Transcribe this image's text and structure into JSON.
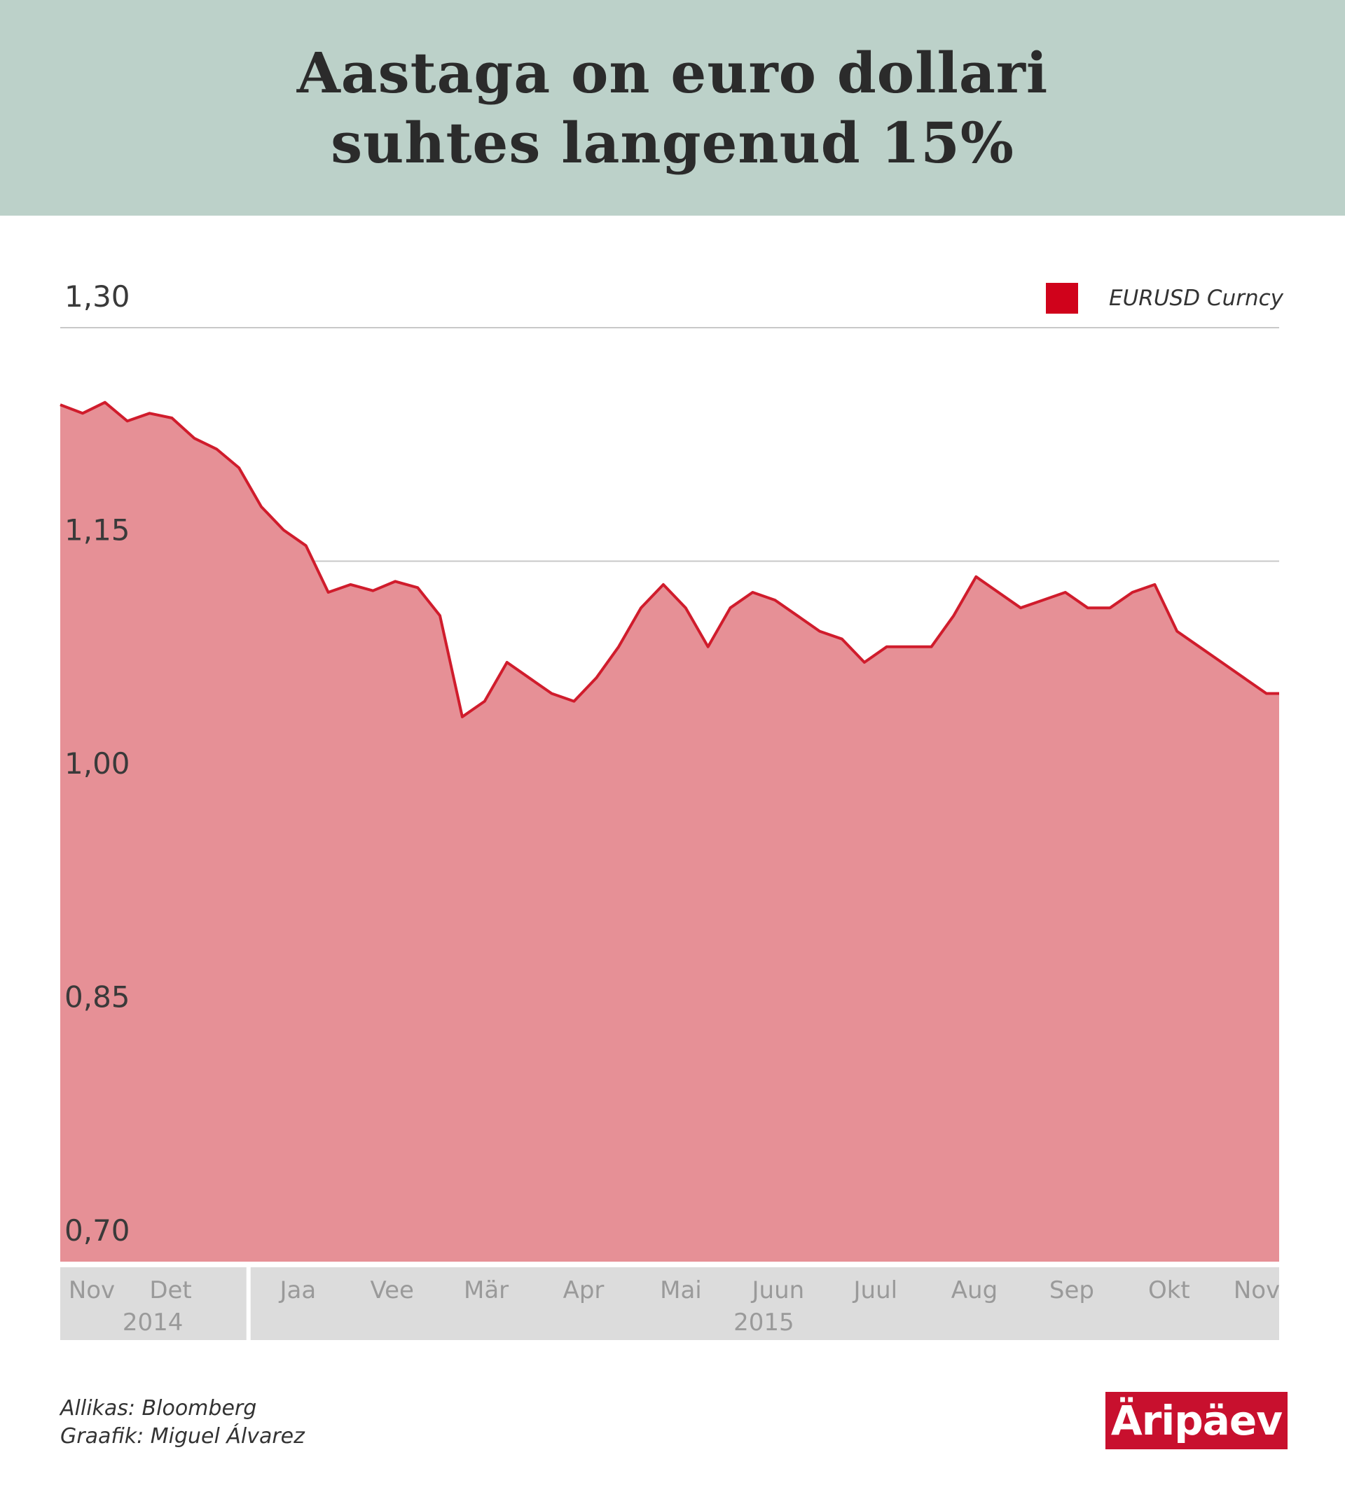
{
  "header": {
    "title_line1": "Aastaga on euro dollari",
    "title_line2": "suhtes langenud 15%"
  },
  "footer": {
    "source": "Allikas: Bloomberg",
    "graphic": "Graafik: Miguel Álvarez",
    "logo": "Äripäev"
  },
  "colors": {
    "header_bg": "#bcd1c9",
    "line": "#d01c2c",
    "area": "#e69096",
    "legend": "#d0021b",
    "axis_band": "#dcdcdc"
  },
  "chart_data": {
    "type": "area",
    "title": "Aastaga on euro dollari suhtes langenud 15%",
    "xlabel": "",
    "ylabel": "",
    "ylim": [
      0.7,
      1.3
    ],
    "yticks": [
      "1,30",
      "1,15",
      "1,00",
      "0,85",
      "0,70"
    ],
    "grid": true,
    "legend_position": "top-right",
    "series": [
      {
        "name": "EURUSD Curncy",
        "x": [
          "2014-11-03",
          "2014-11-10",
          "2014-11-17",
          "2014-11-24",
          "2014-12-01",
          "2014-12-08",
          "2014-12-15",
          "2014-12-22",
          "2014-12-29",
          "2015-01-05",
          "2015-01-12",
          "2015-01-19",
          "2015-01-26",
          "2015-02-02",
          "2015-02-09",
          "2015-02-16",
          "2015-02-23",
          "2015-03-02",
          "2015-03-09",
          "2015-03-16",
          "2015-03-23",
          "2015-03-30",
          "2015-04-06",
          "2015-04-13",
          "2015-04-20",
          "2015-04-27",
          "2015-05-04",
          "2015-05-11",
          "2015-05-18",
          "2015-05-25",
          "2015-06-01",
          "2015-06-08",
          "2015-06-15",
          "2015-06-22",
          "2015-06-29",
          "2015-07-06",
          "2015-07-13",
          "2015-07-20",
          "2015-07-27",
          "2015-08-03",
          "2015-08-10",
          "2015-08-17",
          "2015-08-24",
          "2015-08-31",
          "2015-09-07",
          "2015-09-14",
          "2015-09-21",
          "2015-09-28",
          "2015-10-05",
          "2015-10-12",
          "2015-10-19",
          "2015-10-26",
          "2015-11-02",
          "2015-11-09",
          "2015-11-16",
          "2015-11-20"
        ],
        "values": [
          1.2505,
          1.245,
          1.252,
          1.24,
          1.245,
          1.242,
          1.229,
          1.222,
          1.21,
          1.185,
          1.17,
          1.16,
          1.13,
          1.135,
          1.131,
          1.137,
          1.133,
          1.115,
          1.05,
          1.06,
          1.085,
          1.075,
          1.065,
          1.06,
          1.075,
          1.095,
          1.12,
          1.135,
          1.12,
          1.095,
          1.12,
          1.13,
          1.125,
          1.115,
          1.105,
          1.1,
          1.085,
          1.095,
          1.095,
          1.095,
          1.115,
          1.14,
          1.13,
          1.12,
          1.125,
          1.13,
          1.12,
          1.12,
          1.13,
          1.135,
          1.105,
          1.095,
          1.085,
          1.075,
          1.065,
          1.065
        ]
      }
    ],
    "xaxis": {
      "months": [
        {
          "label": "Nov",
          "date": "2014-11-03"
        },
        {
          "label": "Det",
          "date": "2014-12-01"
        },
        {
          "label": "Jaa",
          "date": "2015-01-01"
        },
        {
          "label": "Vee",
          "date": "2015-02-01"
        },
        {
          "label": "Mär",
          "date": "2015-03-01"
        },
        {
          "label": "Apr",
          "date": "2015-04-01"
        },
        {
          "label": "Mai",
          "date": "2015-05-01"
        },
        {
          "label": "Juun",
          "date": "2015-06-01"
        },
        {
          "label": "Juul",
          "date": "2015-07-01"
        },
        {
          "label": "Aug",
          "date": "2015-08-01"
        },
        {
          "label": "Sep",
          "date": "2015-09-01"
        },
        {
          "label": "Okt",
          "date": "2015-10-01"
        },
        {
          "label": "Nov",
          "date": "2015-11-01"
        }
      ],
      "years": [
        {
          "label": "2014",
          "start": "2014-11-03",
          "end": "2014-12-31"
        },
        {
          "label": "2015",
          "start": "2015-01-01",
          "end": "2015-11-20"
        }
      ]
    }
  }
}
